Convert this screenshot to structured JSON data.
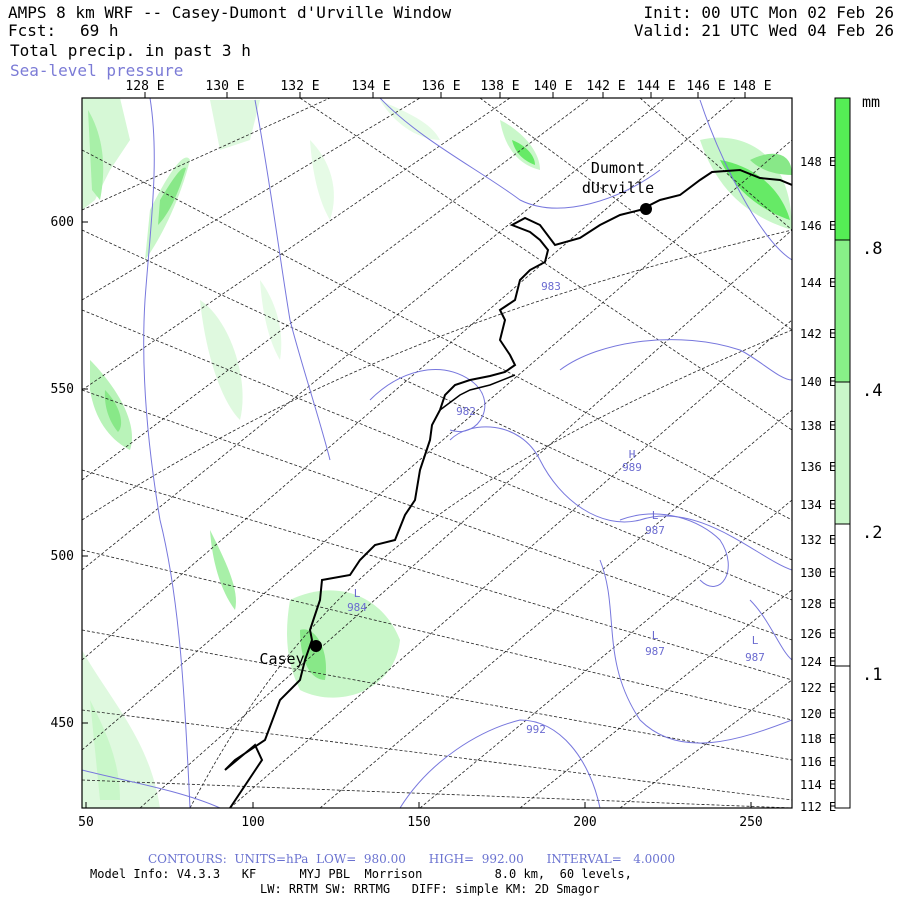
{
  "header": {
    "title": "AMPS 8 km WRF -- Casey-Dumont d'Urville Window",
    "fcst_label": "Fcst:",
    "fcst_value": "69 h",
    "field": "Total precip. in past 3 h",
    "overlay": "Sea-level pressure",
    "init": "Init: 00 UTC Mon 02 Feb 26",
    "valid": "Valid: 21 UTC Wed 04 Feb 26"
  },
  "axes": {
    "top_lon": [
      "128 E",
      "130 E",
      "132 E",
      "134 E",
      "136 E",
      "138 E",
      "140 E",
      "142 E",
      "144 E",
      "146 E",
      "148 E"
    ],
    "right_lon": [
      "148 E",
      "146 E",
      "144 E",
      "142 E",
      "140 E",
      "138 E",
      "136 E",
      "134 E",
      "132 E",
      "130 E",
      "128 E",
      "126 E",
      "124 E",
      "122 E",
      "120 E",
      "118 E",
      "116 E",
      "114 E",
      "112 E"
    ],
    "left_y": [
      "600",
      "550",
      "500",
      "450"
    ],
    "bottom_x": [
      "50",
      "100",
      "150",
      "200",
      "250"
    ]
  },
  "colorbar": {
    "unit": "mm",
    "labels": [
      ".8",
      ".4",
      ".2",
      ".1"
    ],
    "colors": [
      "#55ee55",
      "#88f088",
      "#c9f7c9",
      "#ffffff"
    ]
  },
  "stations": [
    {
      "name_line1": "Dumont",
      "name_line2": "dUrville"
    },
    {
      "name_line1": "Casey",
      "name_line2": ""
    }
  ],
  "pressure_labels": [
    {
      "letter": "",
      "value": "983"
    },
    {
      "letter": "",
      "value": "982"
    },
    {
      "letter": "H",
      "value": "989"
    },
    {
      "letter": "L",
      "value": "987"
    },
    {
      "letter": "L",
      "value": "984"
    },
    {
      "letter": "L",
      "value": "987"
    },
    {
      "letter": "L",
      "value": "987"
    },
    {
      "letter": "",
      "value": "992"
    }
  ],
  "footer": {
    "contours": "CONTOURS:  UNITS=hPa  LOW=  980.00      HIGH=  992.00      INTERVAL=   4.0000",
    "model_line1": "Model Info: V4.3.3   KF      MYJ PBL  Morrison          8.0 km,  60 levels,",
    "model_line2": "LW: RRTM SW: RRTMG   DIFF: simple KM: 2D Smagor"
  }
}
